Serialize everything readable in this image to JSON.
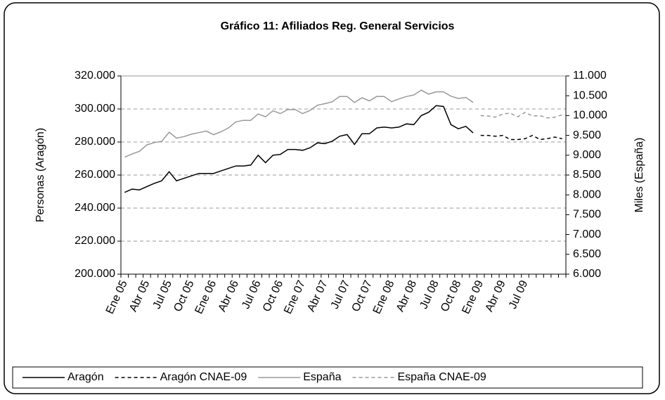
{
  "chart_data": {
    "type": "line",
    "title": "Gráfico 11: Afiliados Reg. General Servicios",
    "y_label": "Personas (Aragón)",
    "y2_label": "Miles (España)",
    "categories": [
      "Ene 05",
      null,
      null,
      "Abr 05",
      null,
      null,
      "Jul 05",
      null,
      null,
      "Oct 05",
      null,
      null,
      "Ene 06",
      null,
      null,
      "Abr 06",
      null,
      null,
      "Jul 06",
      null,
      null,
      "Oct 06",
      null,
      null,
      "Ene 07",
      null,
      null,
      "Abr 07",
      null,
      null,
      "Jul 07",
      null,
      null,
      "Oct 07",
      null,
      null,
      "Ene 08",
      null,
      null,
      "Abr 08",
      null,
      null,
      "Jul 08",
      null,
      null,
      "Oct 08",
      null,
      null,
      "Ene 09",
      null,
      null,
      "Abr 09",
      null,
      null,
      "Jul 09",
      null,
      null,
      null,
      null,
      null
    ],
    "series": [
      {
        "name": "Aragón",
        "color": "#000000",
        "dashed": false,
        "values": [
          249500,
          251500,
          251000,
          253000,
          255000,
          256500,
          262000,
          256500,
          258000,
          259500,
          261000,
          261000,
          261000,
          262500,
          264000,
          265500,
          265500,
          266000,
          272000,
          267500,
          272000,
          272500,
          275500,
          275500,
          275000,
          276500,
          279500,
          279000,
          280500,
          283500,
          284500,
          278500,
          285000,
          285000,
          288500,
          289000,
          288500,
          289000,
          291000,
          290500,
          296000,
          298000,
          302000,
          301500,
          290500,
          288000,
          289500,
          285500,
          null,
          null,
          null,
          null,
          null,
          null,
          null,
          null,
          null,
          null,
          null,
          null
        ]
      },
      {
        "name": "Aragón CNAE-09",
        "color": "#000000",
        "dashed": true,
        "values": [
          null,
          null,
          null,
          null,
          null,
          null,
          null,
          null,
          null,
          null,
          null,
          null,
          null,
          null,
          null,
          null,
          null,
          null,
          null,
          null,
          null,
          null,
          null,
          null,
          null,
          null,
          null,
          null,
          null,
          null,
          null,
          null,
          null,
          null,
          null,
          null,
          null,
          null,
          null,
          null,
          null,
          null,
          null,
          null,
          null,
          null,
          null,
          null,
          284000,
          284000,
          283500,
          284000,
          281500,
          281500,
          282000,
          284000,
          281500,
          282000,
          283000,
          282000
        ]
      },
      {
        "name": "España",
        "color": "#999999",
        "dashed": false,
        "axis": "y2",
        "values": [
          8950,
          9030,
          9100,
          9260,
          9320,
          9350,
          9580,
          9430,
          9470,
          9530,
          9570,
          9610,
          9520,
          9590,
          9690,
          9840,
          9880,
          9880,
          10040,
          9970,
          10120,
          10050,
          10150,
          10150,
          10050,
          10130,
          10260,
          10300,
          10350,
          10480,
          10480,
          10330,
          10450,
          10370,
          10480,
          10480,
          10350,
          10420,
          10480,
          10520,
          10640,
          10540,
          10600,
          10600,
          10490,
          10430,
          10460,
          10330,
          null,
          null,
          null,
          null,
          null,
          null,
          null,
          null,
          null,
          null,
          null,
          null
        ]
      },
      {
        "name": "España CNAE-09",
        "color": "#999999",
        "dashed": true,
        "axis": "y2",
        "values": [
          null,
          null,
          null,
          null,
          null,
          null,
          null,
          null,
          null,
          null,
          null,
          null,
          null,
          null,
          null,
          null,
          null,
          null,
          null,
          null,
          null,
          null,
          null,
          null,
          null,
          null,
          null,
          null,
          null,
          null,
          null,
          null,
          null,
          null,
          null,
          null,
          null,
          null,
          null,
          null,
          null,
          null,
          null,
          null,
          null,
          null,
          null,
          null,
          10000,
          9990,
          9960,
          10040,
          10060,
          9970,
          10080,
          9990,
          10000,
          9940,
          9960,
          10020
        ]
      }
    ],
    "ylim": [
      200000,
      320000
    ],
    "yticks": [
      {
        "value": 200000,
        "label": "200.000"
      },
      {
        "value": 220000,
        "label": "220.000"
      },
      {
        "value": 240000,
        "label": "240.000"
      },
      {
        "value": 260000,
        "label": "260.000"
      },
      {
        "value": 280000,
        "label": "280.000"
      },
      {
        "value": 300000,
        "label": "300.000"
      },
      {
        "value": 320000,
        "label": "320.000"
      }
    ],
    "y2lim": [
      6000,
      11000
    ],
    "y2ticks": [
      {
        "value": 6000,
        "label": "6.000"
      },
      {
        "value": 6500,
        "label": "6.500"
      },
      {
        "value": 7000,
        "label": "7.000"
      },
      {
        "value": 7500,
        "label": "7.500"
      },
      {
        "value": 8000,
        "label": "8.000"
      },
      {
        "value": 8500,
        "label": "8.500"
      },
      {
        "value": 9000,
        "label": "9.000"
      },
      {
        "value": 9500,
        "label": "9.500"
      },
      {
        "value": 10000,
        "label": "10.000"
      },
      {
        "value": 10500,
        "label": "10.500"
      },
      {
        "value": 11000,
        "label": "11.000"
      }
    ],
    "grid": true
  }
}
